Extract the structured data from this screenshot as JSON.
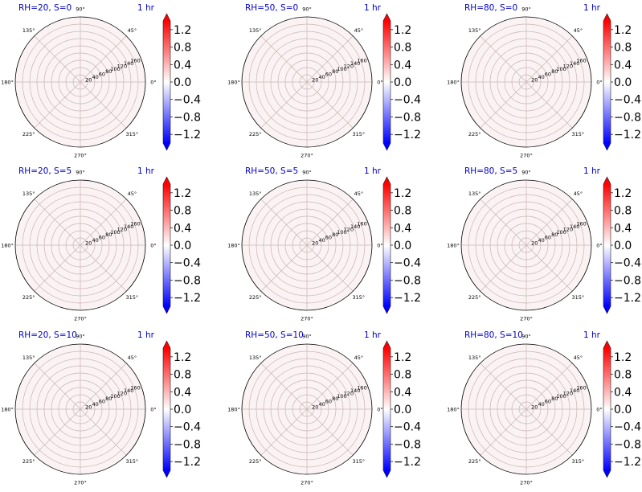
{
  "colors": {
    "title_color": "#0000cc",
    "time_color": "#0000cc",
    "face_fill": "#fbf3f3",
    "grid_color": "#c8b4b4",
    "colorbar_low": "#0000ff",
    "colorbar_mid": "#ffffff",
    "colorbar_high": "#ff0000"
  },
  "chart_data": {
    "type": "heatmap",
    "projection": "polar",
    "layout": "3x3 grid of polar plots, each with a vertical colorbar",
    "angle_ticks": [
      "0°",
      "45°",
      "90°",
      "135°",
      "180°",
      "225°",
      "270°",
      "315°"
    ],
    "radial_ticks": [
      "20",
      "40",
      "60",
      "80",
      "100",
      "120",
      "140",
      "160"
    ],
    "radial_range": [
      0,
      180
    ],
    "colorbar": {
      "colormap": "bwr",
      "ticks": [
        "1.2",
        "0.8",
        "0.4",
        "0.0",
        "−0.4",
        "−0.8",
        "−1.2"
      ],
      "range": [
        -1.4,
        1.4
      ],
      "extend": "both"
    },
    "panels": [
      {
        "title": "RH=20, S=0",
        "time": "1 hr",
        "value": 0.0
      },
      {
        "title": "RH=50, S=0",
        "time": "1 hr",
        "value": 0.0
      },
      {
        "title": "RH=80, S=0",
        "time": "1 hr",
        "value": 0.0
      },
      {
        "title": "RH=20, S=5",
        "time": "1 hr",
        "value": 0.0
      },
      {
        "title": "RH=50, S=5",
        "time": "1 hr",
        "value": 0.0
      },
      {
        "title": "RH=80, S=5",
        "time": "1 hr",
        "value": 0.0
      },
      {
        "title": "RH=20, S=10",
        "time": "1 hr",
        "value": 0.0
      },
      {
        "title": "RH=50, S=10",
        "time": "1 hr",
        "value": 0.0
      },
      {
        "title": "RH=80, S=10",
        "time": "1 hr",
        "value": 0.0
      }
    ]
  }
}
